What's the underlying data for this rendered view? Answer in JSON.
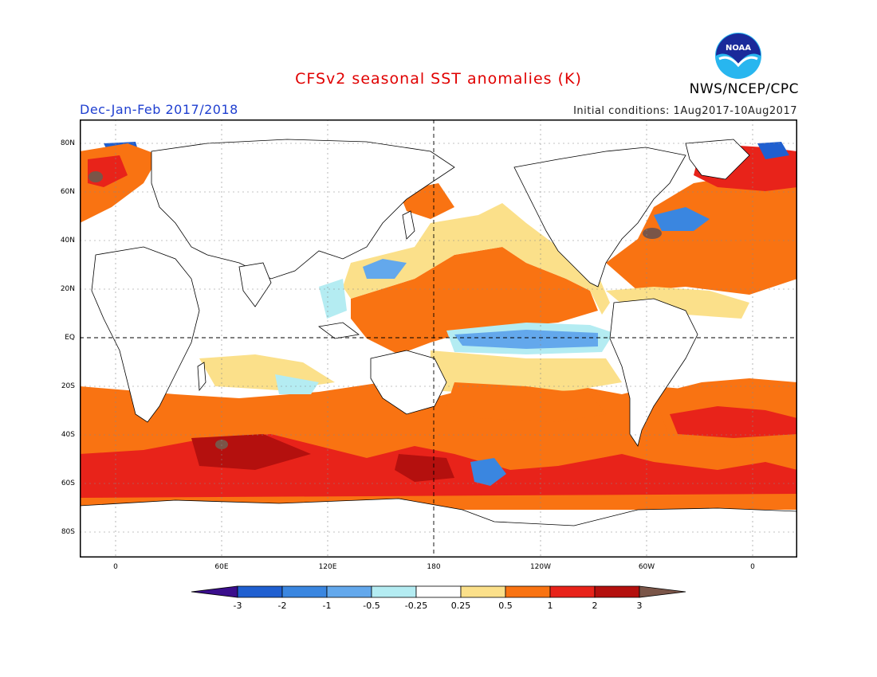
{
  "title": "CFSv2 seasonal SST anomalies (K)",
  "period": "Dec-Jan-Feb 2017/2018",
  "initial_conditions": "Initial conditions: 1Aug2017-10Aug2017",
  "agency": "NWS/NCEP/CPC",
  "logo_text": "NOAA",
  "lat_labels": [
    "80N",
    "60N",
    "40N",
    "20N",
    "EQ",
    "20S",
    "40S",
    "60S",
    "80S"
  ],
  "lon_labels": [
    "0",
    "60E",
    "120E",
    "180",
    "120W",
    "60W",
    "0"
  ],
  "colorbar": {
    "ticks": [
      "-3",
      "-2",
      "-1",
      "-0.5",
      "-0.25",
      "0.25",
      "0.5",
      "1",
      "2",
      "3"
    ],
    "colors": [
      "#3a0e8c",
      "#1f5fd0",
      "#3a86e0",
      "#63a8ec",
      "#b4ecf2",
      "#ffffff",
      "#fbe08a",
      "#f97312",
      "#e8231a",
      "#b4100e",
      "#7a5548"
    ]
  },
  "colors": {
    "title": "#e00000",
    "period": "#1f3fd0",
    "land": "#ffffff",
    "warm_light": "#fbe08a",
    "warm": "#f97312",
    "warmer": "#e8231a",
    "hot": "#b4100e",
    "extreme": "#7a5548",
    "cool_light": "#b4ecf2",
    "cool": "#63a8ec",
    "cooler": "#3a86e0"
  }
}
